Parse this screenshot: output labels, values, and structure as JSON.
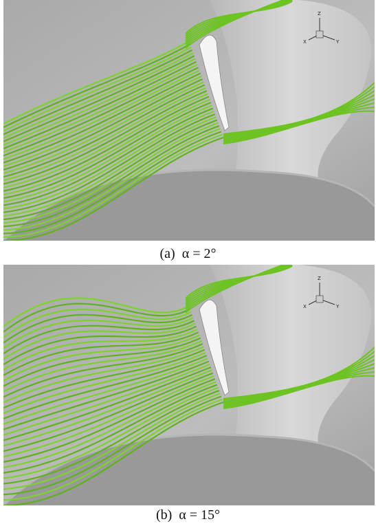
{
  "figures": [
    {
      "label": "(a)",
      "caption": "α = 2°",
      "axes": {
        "z": "Z",
        "x": "X",
        "y": "Y"
      }
    },
    {
      "label": "(b)",
      "caption": "α = 15°",
      "axes": {
        "z": "Z",
        "x": "X",
        "y": "Y"
      }
    }
  ]
}
